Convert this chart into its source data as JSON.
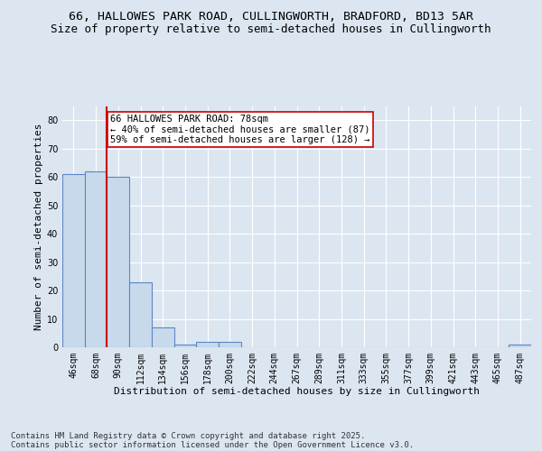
{
  "title_line1": "66, HALLOWES PARK ROAD, CULLINGWORTH, BRADFORD, BD13 5AR",
  "title_line2": "Size of property relative to semi-detached houses in Cullingworth",
  "xlabel": "Distribution of semi-detached houses by size in Cullingworth",
  "ylabel": "Number of semi-detached properties",
  "categories": [
    "46sqm",
    "68sqm",
    "90sqm",
    "112sqm",
    "134sqm",
    "156sqm",
    "178sqm",
    "200sqm",
    "222sqm",
    "244sqm",
    "267sqm",
    "289sqm",
    "311sqm",
    "333sqm",
    "355sqm",
    "377sqm",
    "399sqm",
    "421sqm",
    "443sqm",
    "465sqm",
    "487sqm"
  ],
  "values": [
    61,
    62,
    60,
    23,
    7,
    1,
    2,
    2,
    0,
    0,
    0,
    0,
    0,
    0,
    0,
    0,
    0,
    0,
    0,
    0,
    1
  ],
  "bar_color": "#c9d9ec",
  "bar_edge_color": "#5b87c5",
  "vline_color": "#cc0000",
  "annotation_text": "66 HALLOWES PARK ROAD: 78sqm\n← 40% of semi-detached houses are smaller (87)\n59% of semi-detached houses are larger (128) →",
  "annotation_box_color": "#ffffff",
  "annotation_box_edge": "#cc0000",
  "ylim": [
    0,
    85
  ],
  "yticks": [
    0,
    10,
    20,
    30,
    40,
    50,
    60,
    70,
    80
  ],
  "background_color": "#dce6f1",
  "plot_bg_color": "#dce6f1",
  "footer_line1": "Contains HM Land Registry data © Crown copyright and database right 2025.",
  "footer_line2": "Contains public sector information licensed under the Open Government Licence v3.0.",
  "grid_color": "#ffffff",
  "title_fontsize": 9.5,
  "subtitle_fontsize": 9,
  "axis_label_fontsize": 8,
  "tick_fontsize": 7,
  "annotation_fontsize": 7.5,
  "footer_fontsize": 6.5
}
